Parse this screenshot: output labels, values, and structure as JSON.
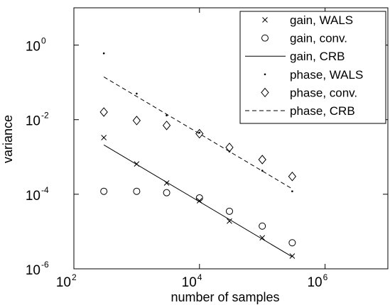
{
  "chart_data": {
    "type": "scatter",
    "xlabel": "number of samples",
    "ylabel": "variance",
    "xscale": "log",
    "yscale": "log",
    "xlim": [
      100,
      10000000
    ],
    "ylim": [
      1e-06,
      10
    ],
    "x_ticks": [
      {
        "value": 100,
        "base": "10",
        "exp": "2"
      },
      {
        "value": 10000,
        "base": "10",
        "exp": "4"
      },
      {
        "value": 1000000,
        "base": "10",
        "exp": "6"
      }
    ],
    "y_ticks": [
      {
        "value": 1e-06,
        "base": "10",
        "exp": "-6"
      },
      {
        "value": 0.0001,
        "base": "10",
        "exp": "-4"
      },
      {
        "value": 0.01,
        "base": "10",
        "exp": "-2"
      },
      {
        "value": 1,
        "base": "10",
        "exp": "0"
      }
    ],
    "grid": false,
    "legend_position": "top-right",
    "series": [
      {
        "name": "gain, WALS",
        "marker": "x",
        "line": "none",
        "color": "#000000",
        "x": [
          300,
          1000,
          3000,
          10000,
          30000,
          100000,
          300000
        ],
        "y": [
          0.0033,
          0.00065,
          0.0002,
          6.7e-05,
          1.9e-05,
          6.8e-06,
          2.2e-06
        ]
      },
      {
        "name": "gain, conv.",
        "marker": "circle",
        "line": "none",
        "color": "#000000",
        "x": [
          300,
          1000,
          3000,
          10000,
          30000,
          100000,
          300000
        ],
        "y": [
          0.00012,
          0.00012,
          0.00011,
          8e-05,
          3.5e-05,
          1.4e-05,
          5e-06
        ]
      },
      {
        "name": "gain, CRB",
        "marker": "none",
        "line": "solid",
        "color": "#000000",
        "x": [
          300,
          300000
        ],
        "y": [
          0.0021,
          2.1e-06
        ]
      },
      {
        "name": "phase, WALS",
        "marker": "dot",
        "line": "none",
        "color": "#000000",
        "x": [
          300,
          1000,
          3000,
          10000,
          30000,
          100000,
          300000
        ],
        "y": [
          0.6,
          0.05,
          0.013,
          0.0045,
          0.0014,
          0.00043,
          0.00012
        ]
      },
      {
        "name": "phase, conv.",
        "marker": "diamond",
        "line": "none",
        "color": "#000000",
        "x": [
          300,
          1000,
          3000,
          10000,
          30000,
          100000,
          300000
        ],
        "y": [
          0.016,
          0.0095,
          0.007,
          0.0042,
          0.0018,
          0.00085,
          0.0003
        ]
      },
      {
        "name": "phase, CRB",
        "marker": "none",
        "line": "dashed",
        "color": "#000000",
        "x": [
          300,
          300000
        ],
        "y": [
          0.14,
          0.00014
        ]
      }
    ]
  }
}
